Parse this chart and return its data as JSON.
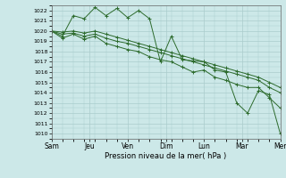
{
  "title": "",
  "xlabel": "Pression niveau de la mer( hPa )",
  "ylabel": "",
  "bg_color": "#cce8e8",
  "grid_color": "#aacccc",
  "line_color": "#2d6b2d",
  "ylim": [
    1009.5,
    1022.5
  ],
  "day_labels": [
    "Sam",
    "Jeu",
    "Ven",
    "Dim",
    "Lun",
    "Mar",
    "Mer"
  ],
  "series": [
    [
      1020.0,
      1019.5,
      1021.5,
      1021.2,
      1022.3,
      1021.5,
      1022.2,
      1021.3,
      1022.0,
      1021.2,
      1017.0,
      1019.5,
      1017.2,
      1017.1,
      1017.0,
      1016.2,
      1016.0,
      1013.0,
      1012.0,
      1014.2,
      1013.8,
      1010.0
    ],
    [
      1020.0,
      1019.3,
      1019.7,
      1019.2,
      1019.5,
      1018.8,
      1018.5,
      1018.2,
      1018.0,
      1017.5,
      1017.2,
      1017.0,
      1016.5,
      1016.0,
      1016.2,
      1015.5,
      1015.2,
      1014.8,
      1014.5,
      1014.5,
      1013.5,
      1012.5
    ],
    [
      1020.0,
      1019.7,
      1019.8,
      1019.5,
      1019.7,
      1019.3,
      1019.0,
      1018.8,
      1018.5,
      1018.2,
      1017.9,
      1017.6,
      1017.3,
      1017.0,
      1016.7,
      1016.4,
      1016.1,
      1015.8,
      1015.5,
      1015.2,
      1014.5,
      1014.0
    ],
    [
      1020.0,
      1019.9,
      1020.0,
      1019.8,
      1020.0,
      1019.7,
      1019.4,
      1019.1,
      1018.8,
      1018.5,
      1018.2,
      1017.9,
      1017.6,
      1017.3,
      1017.0,
      1016.7,
      1016.4,
      1016.1,
      1015.8,
      1015.5,
      1015.0,
      1014.5
    ]
  ],
  "yticks": [
    1010,
    1011,
    1012,
    1013,
    1014,
    1015,
    1016,
    1017,
    1018,
    1019,
    1020,
    1021,
    1022
  ],
  "n_points": 22,
  "xlim_max": 21
}
